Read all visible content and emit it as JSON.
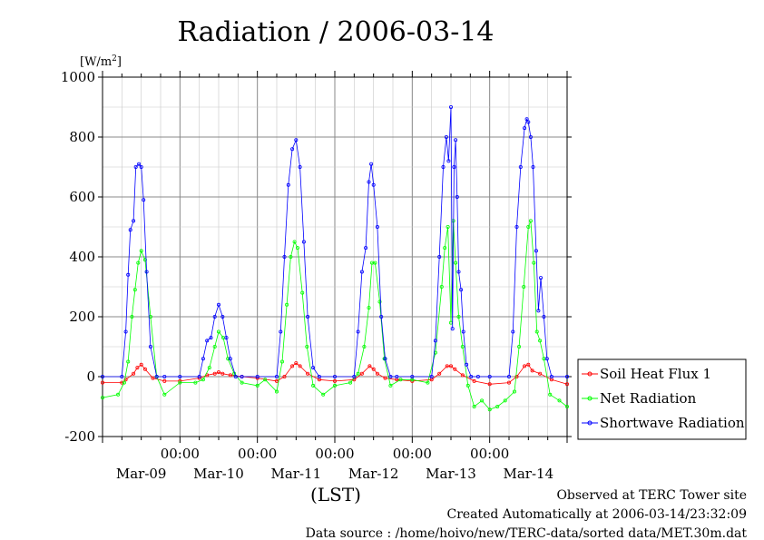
{
  "chart_data": {
    "type": "line",
    "title": "Radiation / 2006-03-14",
    "ylabel_unit": "[W/m",
    "ylabel_unit_sup": "2",
    "ylabel_unit_close": "]",
    "xlabel": "(LST)",
    "ylim": [
      -200,
      1000
    ],
    "yticks": [
      -200,
      0,
      200,
      400,
      600,
      800,
      1000
    ],
    "xlim": [
      0,
      6
    ],
    "x_tick_labels": [
      "00:00",
      "00:00",
      "00:00",
      "00:00",
      "00:00"
    ],
    "x_tick_positions": [
      1,
      2,
      3,
      4,
      5
    ],
    "day_labels": [
      "Mar-09",
      "Mar-10",
      "Mar-11",
      "Mar-12",
      "Mar-13",
      "Mar-14"
    ],
    "day_label_positions": [
      0.5,
      1.5,
      2.5,
      3.5,
      4.5,
      5.5
    ],
    "grid": true,
    "legend_position": "right",
    "x_unit": "days since start of Mar-09 (00:00 = day boundary)",
    "series": [
      {
        "name": "Soil Heat Flux 1",
        "color": "#ff0000",
        "x": [
          0,
          0.25,
          0.3,
          0.4,
          0.45,
          0.5,
          0.55,
          0.65,
          0.8,
          1.0,
          1.25,
          1.35,
          1.45,
          1.5,
          1.55,
          1.65,
          1.8,
          2.0,
          2.25,
          2.35,
          2.45,
          2.5,
          2.55,
          2.65,
          2.8,
          3.0,
          3.25,
          3.35,
          3.45,
          3.5,
          3.55,
          3.65,
          3.8,
          4.0,
          4.25,
          4.35,
          4.45,
          4.5,
          4.55,
          4.65,
          4.8,
          5.0,
          5.25,
          5.35,
          5.45,
          5.5,
          5.55,
          5.65,
          5.8,
          6.0
        ],
        "y": [
          -20,
          -20,
          -10,
          10,
          30,
          40,
          25,
          -5,
          -15,
          -15,
          -5,
          5,
          10,
          15,
          10,
          5,
          0,
          -5,
          -15,
          0,
          35,
          45,
          35,
          10,
          -10,
          -15,
          -10,
          10,
          35,
          25,
          10,
          -5,
          -10,
          -15,
          -10,
          10,
          35,
          35,
          25,
          5,
          -15,
          -25,
          -20,
          0,
          35,
          40,
          20,
          10,
          -10,
          -25
        ]
      },
      {
        "name": "Net Radiation",
        "color": "#00ff00",
        "x": [
          0,
          0.2,
          0.28,
          0.33,
          0.38,
          0.42,
          0.46,
          0.5,
          0.55,
          0.62,
          0.7,
          0.8,
          1.0,
          1.2,
          1.3,
          1.38,
          1.45,
          1.5,
          1.56,
          1.62,
          1.7,
          1.8,
          2.0,
          2.1,
          2.25,
          2.32,
          2.38,
          2.43,
          2.48,
          2.52,
          2.58,
          2.64,
          2.72,
          2.85,
          3.0,
          3.2,
          3.3,
          3.38,
          3.44,
          3.48,
          3.52,
          3.58,
          3.64,
          3.72,
          3.85,
          4.0,
          4.2,
          4.3,
          4.38,
          4.42,
          4.46,
          4.5,
          4.53,
          4.56,
          4.6,
          4.65,
          4.72,
          4.8,
          4.9,
          5.0,
          5.1,
          5.2,
          5.32,
          5.38,
          5.44,
          5.5,
          5.53,
          5.57,
          5.61,
          5.65,
          5.7,
          5.78,
          5.9,
          6.0
        ],
        "y": [
          -70,
          -60,
          -20,
          50,
          200,
          290,
          380,
          420,
          390,
          200,
          0,
          -60,
          -20,
          -20,
          -10,
          30,
          100,
          150,
          130,
          60,
          10,
          -20,
          -30,
          -10,
          -50,
          50,
          240,
          400,
          450,
          430,
          280,
          100,
          -30,
          -60,
          -30,
          -20,
          10,
          100,
          230,
          380,
          380,
          250,
          60,
          -30,
          -10,
          -10,
          -20,
          80,
          300,
          430,
          500,
          180,
          520,
          380,
          200,
          100,
          -30,
          -100,
          -80,
          -110,
          -100,
          -80,
          -50,
          100,
          300,
          500,
          520,
          380,
          150,
          120,
          60,
          -60,
          -80,
          -100
        ]
      },
      {
        "name": "Shortwave Radiation",
        "color": "#0000ff",
        "x": [
          0,
          0.25,
          0.3,
          0.33,
          0.36,
          0.4,
          0.43,
          0.47,
          0.5,
          0.53,
          0.57,
          0.62,
          0.7,
          0.8,
          1.0,
          1.25,
          1.3,
          1.35,
          1.4,
          1.45,
          1.5,
          1.55,
          1.6,
          1.65,
          1.72,
          1.8,
          2.0,
          2.25,
          2.3,
          2.35,
          2.4,
          2.45,
          2.5,
          2.55,
          2.6,
          2.65,
          2.72,
          2.8,
          3.0,
          3.25,
          3.3,
          3.35,
          3.4,
          3.44,
          3.47,
          3.5,
          3.55,
          3.6,
          3.65,
          3.72,
          3.8,
          4.0,
          4.25,
          4.3,
          4.35,
          4.4,
          4.44,
          4.47,
          4.5,
          4.52,
          4.54,
          4.56,
          4.58,
          4.6,
          4.63,
          4.66,
          4.7,
          4.76,
          4.85,
          5.0,
          5.25,
          5.3,
          5.35,
          5.4,
          5.45,
          5.48,
          5.5,
          5.53,
          5.56,
          5.6,
          5.63,
          5.66,
          5.7,
          5.74,
          5.8,
          6.0
        ],
        "y": [
          0,
          0,
          150,
          340,
          490,
          520,
          700,
          710,
          700,
          590,
          350,
          100,
          0,
          0,
          0,
          0,
          60,
          120,
          130,
          200,
          240,
          200,
          130,
          60,
          0,
          0,
          0,
          0,
          150,
          400,
          640,
          760,
          790,
          700,
          450,
          200,
          30,
          0,
          0,
          0,
          150,
          350,
          430,
          650,
          710,
          640,
          500,
          200,
          60,
          0,
          0,
          0,
          0,
          120,
          400,
          700,
          800,
          720,
          900,
          160,
          700,
          790,
          600,
          350,
          290,
          150,
          40,
          0,
          0,
          0,
          0,
          150,
          500,
          700,
          830,
          860,
          850,
          800,
          700,
          420,
          220,
          330,
          200,
          60,
          0,
          0
        ]
      }
    ]
  },
  "footer": {
    "line1": "Observed at TERC Tower site",
    "line2": "Created Automatically at 2006-03-14/23:32:09",
    "line3": "Data source : /home/hoivo/new/TERC-data/sorted data/MET.30m.dat"
  }
}
